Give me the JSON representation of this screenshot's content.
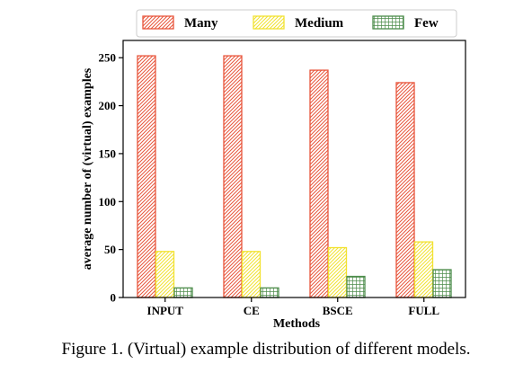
{
  "chart_data": {
    "type": "bar",
    "categories": [
      "INPUT",
      "CE",
      "BSCE",
      "FULL"
    ],
    "series": [
      {
        "name": "Many",
        "values": [
          252,
          252,
          237,
          224
        ],
        "color": "#e8553b",
        "pattern": "diagonal"
      },
      {
        "name": "Medium",
        "values": [
          48,
          48,
          52,
          58
        ],
        "color": "#f2e230",
        "pattern": "diagonal"
      },
      {
        "name": "Few",
        "values": [
          10,
          10,
          22,
          29
        ],
        "color": "#4c8c4a",
        "pattern": "grid"
      }
    ],
    "xlabel": "Methods",
    "ylabel": "average number of (virtual) examples",
    "ylim": [
      0,
      268
    ],
    "yticks": [
      0,
      50,
      100,
      150,
      200,
      250
    ],
    "grid": false,
    "legend": "top-center"
  },
  "caption": "Figure 1. (Virtual) example distribution of different models."
}
